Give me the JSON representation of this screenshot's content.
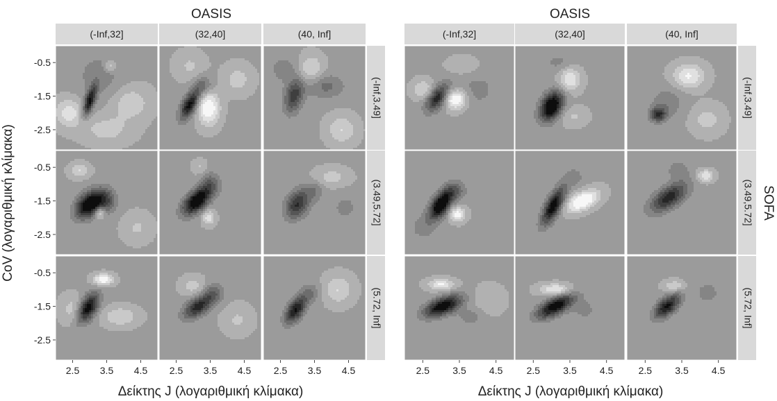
{
  "chart_data": [
    {
      "type": "heatmap",
      "subtype": "filled-contour-faceted",
      "title": "OASIS",
      "xlabel": "Δείκτης J (λογαριθμική κλίμακα)",
      "ylabel": "CoV (λογαριθμική κλίμακα)",
      "xlim": [
        2.0,
        5.0
      ],
      "ylim": [
        -3.1,
        0.0
      ],
      "x_ticks": [
        "2.5",
        "3.5",
        "4.5"
      ],
      "y_ticks": [
        "-0.5",
        "-1.5",
        "-2.5"
      ],
      "facet_cols": [
        "(-Inf,32]",
        "(32,40]",
        "(40, Inf]"
      ],
      "facet_rows": [
        "(-Inf,3.49]",
        "(3.49,5.72]",
        "(5.72, Inf]"
      ],
      "palette": [
        "#f7f7f7",
        "#e0e0e0",
        "#c9c9c9",
        "#b1b1b1",
        "#9b9b9b",
        "#858585",
        "#6d6d6d",
        "#565656",
        "#3f3f3f",
        "#262626",
        "#0d0d0d"
      ],
      "base_level": 0.38,
      "panels": [
        [
          {
            "blobs": [
              {
                "x": 3.0,
                "y": -1.65,
                "amp": 0.55,
                "sx": 0.14,
                "sy": 0.32,
                "rho": 0.65
              },
              {
                "x": 3.3,
                "y": -0.9,
                "amp": 0.12,
                "sx": 0.5,
                "sy": 0.5,
                "rho": 0.0
              },
              {
                "x": 2.4,
                "y": -2.0,
                "amp": -0.25,
                "sx": 0.3,
                "sy": 0.3,
                "rho": 0.0
              },
              {
                "x": 4.2,
                "y": -1.7,
                "amp": -0.18,
                "sx": 0.4,
                "sy": 0.35,
                "rho": 0.0
              },
              {
                "x": 3.6,
                "y": -0.6,
                "amp": -0.2,
                "sx": 0.12,
                "sy": 0.12,
                "rho": 0.0
              },
              {
                "x": 3.5,
                "y": -2.5,
                "amp": -0.15,
                "sx": 0.5,
                "sy": 0.3,
                "rho": 0.0
              }
            ]
          },
          {
            "blobs": [
              {
                "x": 2.9,
                "y": -1.75,
                "amp": 0.58,
                "sx": 0.2,
                "sy": 0.3,
                "rho": 0.6
              },
              {
                "x": 3.45,
                "y": -1.85,
                "amp": -0.4,
                "sx": 0.22,
                "sy": 0.35,
                "rho": 0.0
              },
              {
                "x": 3.3,
                "y": -1.2,
                "amp": 0.22,
                "sx": 0.2,
                "sy": 0.2,
                "rho": 0.0
              },
              {
                "x": 2.9,
                "y": -0.6,
                "amp": -0.12,
                "sx": 0.3,
                "sy": 0.3,
                "rho": 0.0
              },
              {
                "x": 4.3,
                "y": -1.0,
                "amp": -0.15,
                "sx": 0.3,
                "sy": 0.3,
                "rho": 0.0
              }
            ]
          },
          {
            "blobs": [
              {
                "x": 2.9,
                "y": -1.5,
                "amp": 0.4,
                "sx": 0.2,
                "sy": 0.35,
                "rho": 0.3
              },
              {
                "x": 3.8,
                "y": -1.2,
                "amp": 0.2,
                "sx": 0.4,
                "sy": 0.25,
                "rho": 0.0
              },
              {
                "x": 2.6,
                "y": -0.7,
                "amp": 0.12,
                "sx": 0.3,
                "sy": 0.3,
                "rho": 0.0
              },
              {
                "x": 3.4,
                "y": -0.7,
                "amp": -0.22,
                "sx": 0.25,
                "sy": 0.3,
                "rho": 0.0
              },
              {
                "x": 4.3,
                "y": -2.5,
                "amp": -0.2,
                "sx": 0.3,
                "sy": 0.3,
                "rho": 0.0
              }
            ]
          }
        ],
        [
          {
            "blobs": [
              {
                "x": 3.0,
                "y": -1.6,
                "amp": 0.72,
                "sx": 0.28,
                "sy": 0.28,
                "rho": 0.4
              },
              {
                "x": 3.5,
                "y": -1.5,
                "amp": 0.28,
                "sx": 0.2,
                "sy": 0.25,
                "rho": 0.0
              },
              {
                "x": 3.3,
                "y": -1.85,
                "amp": -0.3,
                "sx": 0.1,
                "sy": 0.12,
                "rho": 0.0
              },
              {
                "x": 2.7,
                "y": -0.6,
                "amp": -0.2,
                "sx": 0.2,
                "sy": 0.15,
                "rho": 0.0
              },
              {
                "x": 4.4,
                "y": -2.3,
                "amp": -0.12,
                "sx": 0.3,
                "sy": 0.3,
                "rho": 0.0
              }
            ]
          },
          {
            "blobs": [
              {
                "x": 3.1,
                "y": -1.5,
                "amp": 0.7,
                "sx": 0.28,
                "sy": 0.28,
                "rho": 0.55
              },
              {
                "x": 3.5,
                "y": -1.0,
                "amp": 0.22,
                "sx": 0.2,
                "sy": 0.25,
                "rho": 0.0
              },
              {
                "x": 3.45,
                "y": -2.0,
                "amp": -0.26,
                "sx": 0.13,
                "sy": 0.15,
                "rho": 0.0
              },
              {
                "x": 3.2,
                "y": -0.5,
                "amp": -0.12,
                "sx": 0.15,
                "sy": 0.15,
                "rho": 0.0
              }
            ]
          },
          {
            "blobs": [
              {
                "x": 3.0,
                "y": -1.6,
                "amp": 0.45,
                "sx": 0.25,
                "sy": 0.3,
                "rho": 0.3
              },
              {
                "x": 3.5,
                "y": -1.2,
                "amp": 0.15,
                "sx": 0.2,
                "sy": 0.2,
                "rho": 0.0
              },
              {
                "x": 4.0,
                "y": -0.8,
                "amp": -0.15,
                "sx": 0.35,
                "sy": 0.2,
                "rho": 0.0
              },
              {
                "x": 4.4,
                "y": -1.7,
                "amp": 0.1,
                "sx": 0.3,
                "sy": 0.3,
                "rho": 0.0
              }
            ]
          }
        ],
        [
          {
            "blobs": [
              {
                "x": 2.95,
                "y": -1.55,
                "amp": 0.62,
                "sx": 0.22,
                "sy": 0.3,
                "rho": 0.5
              },
              {
                "x": 3.4,
                "y": -0.7,
                "amp": -0.38,
                "sx": 0.2,
                "sy": 0.12,
                "rho": 0.0
              },
              {
                "x": 3.9,
                "y": -1.8,
                "amp": -0.2,
                "sx": 0.35,
                "sy": 0.2,
                "rho": 0.0
              },
              {
                "x": 2.5,
                "y": -1.6,
                "amp": -0.15,
                "sx": 0.25,
                "sy": 0.3,
                "rho": 0.0
              }
            ]
          },
          {
            "blobs": [
              {
                "x": 3.15,
                "y": -1.5,
                "amp": 0.5,
                "sx": 0.3,
                "sy": 0.25,
                "rho": 0.55
              },
              {
                "x": 3.6,
                "y": -1.1,
                "amp": 0.2,
                "sx": 0.2,
                "sy": 0.2,
                "rho": 0.0
              },
              {
                "x": 3.0,
                "y": -0.9,
                "amp": -0.15,
                "sx": 0.25,
                "sy": 0.2,
                "rho": 0.0
              },
              {
                "x": 4.3,
                "y": -1.9,
                "amp": -0.12,
                "sx": 0.3,
                "sy": 0.3,
                "rho": 0.0
              }
            ]
          },
          {
            "blobs": [
              {
                "x": 2.95,
                "y": -1.6,
                "amp": 0.55,
                "sx": 0.22,
                "sy": 0.28,
                "rho": 0.55
              },
              {
                "x": 3.4,
                "y": -1.1,
                "amp": 0.15,
                "sx": 0.2,
                "sy": 0.2,
                "rho": 0.0
              },
              {
                "x": 4.2,
                "y": -1.0,
                "amp": -0.2,
                "sx": 0.3,
                "sy": 0.3,
                "rho": 0.0
              }
            ]
          }
        ]
      ]
    },
    {
      "type": "heatmap",
      "subtype": "filled-contour-faceted",
      "title": "OASIS",
      "xlabel": "Δείκτης J (λογαριθμική κλίμακα)",
      "ylabel": "",
      "right_label": "SOFA",
      "xlim": [
        2.0,
        5.0
      ],
      "ylim": [
        -3.1,
        0.0
      ],
      "x_ticks": [
        "2.5",
        "3.5",
        "4.5"
      ],
      "facet_cols": [
        "(-Inf,32]",
        "(32,40]",
        "(40, Inf]"
      ],
      "facet_rows": [
        "(-Inf,3.49]",
        "(3.49,5.72]",
        "(5.72, Inf]"
      ],
      "palette": [
        "#f7f7f7",
        "#e0e0e0",
        "#c9c9c9",
        "#b1b1b1",
        "#9b9b9b",
        "#858585",
        "#6d6d6d",
        "#565656",
        "#3f3f3f",
        "#262626",
        "#0d0d0d"
      ],
      "base_level": 0.38,
      "panels": [
        [
          {
            "blobs": [
              {
                "x": 2.9,
                "y": -1.55,
                "amp": 0.5,
                "sx": 0.22,
                "sy": 0.28,
                "rho": 0.55
              },
              {
                "x": 3.4,
                "y": -1.6,
                "amp": -0.42,
                "sx": 0.2,
                "sy": 0.2,
                "rho": 0.0
              },
              {
                "x": 2.5,
                "y": -1.3,
                "amp": -0.2,
                "sx": 0.2,
                "sy": 0.2,
                "rho": 0.0
              },
              {
                "x": 4.0,
                "y": -1.3,
                "amp": 0.1,
                "sx": 0.4,
                "sy": 0.4,
                "rho": 0.0
              },
              {
                "x": 3.6,
                "y": -0.6,
                "amp": -0.1,
                "sx": 0.3,
                "sy": 0.2,
                "rho": 0.0
              }
            ]
          },
          {
            "blobs": [
              {
                "x": 3.0,
                "y": -1.8,
                "amp": 0.72,
                "sx": 0.22,
                "sy": 0.3,
                "rho": 0.35
              },
              {
                "x": 3.5,
                "y": -1.0,
                "amp": -0.3,
                "sx": 0.2,
                "sy": 0.25,
                "rho": 0.0
              },
              {
                "x": 3.6,
                "y": -2.1,
                "amp": -0.12,
                "sx": 0.25,
                "sy": 0.2,
                "rho": 0.0
              },
              {
                "x": 3.2,
                "y": -0.5,
                "amp": 0.1,
                "sx": 0.3,
                "sy": 0.2,
                "rho": 0.0
              }
            ]
          },
          {
            "blobs": [
              {
                "x": 2.85,
                "y": -2.05,
                "amp": 0.45,
                "sx": 0.15,
                "sy": 0.15,
                "rho": 0.0
              },
              {
                "x": 3.1,
                "y": -1.7,
                "amp": 0.15,
                "sx": 0.3,
                "sy": 0.3,
                "rho": 0.0
              },
              {
                "x": 3.7,
                "y": -0.9,
                "amp": -0.3,
                "sx": 0.3,
                "sy": 0.25,
                "rho": 0.0
              },
              {
                "x": 4.2,
                "y": -2.2,
                "amp": -0.15,
                "sx": 0.3,
                "sy": 0.3,
                "rho": 0.0
              }
            ]
          }
        ],
        [
          {
            "blobs": [
              {
                "x": 3.0,
                "y": -1.6,
                "amp": 0.72,
                "sx": 0.22,
                "sy": 0.3,
                "rho": 0.55
              },
              {
                "x": 3.45,
                "y": -1.9,
                "amp": -0.35,
                "sx": 0.15,
                "sy": 0.15,
                "rho": 0.0
              },
              {
                "x": 3.4,
                "y": -1.2,
                "amp": 0.2,
                "sx": 0.2,
                "sy": 0.2,
                "rho": 0.0
              },
              {
                "x": 2.5,
                "y": -2.3,
                "amp": 0.1,
                "sx": 0.3,
                "sy": 0.3,
                "rho": 0.0
              }
            ]
          },
          {
            "blobs": [
              {
                "x": 3.05,
                "y": -1.65,
                "amp": 0.62,
                "sx": 0.22,
                "sy": 0.38,
                "rho": 0.7
              },
              {
                "x": 3.85,
                "y": -1.5,
                "amp": -0.45,
                "sx": 0.3,
                "sy": 0.22,
                "rho": 0.5
              },
              {
                "x": 3.6,
                "y": -0.8,
                "amp": 0.12,
                "sx": 0.2,
                "sy": 0.2,
                "rho": 0.0
              }
            ]
          },
          {
            "blobs": [
              {
                "x": 3.15,
                "y": -1.4,
                "amp": 0.5,
                "sx": 0.35,
                "sy": 0.3,
                "rho": 0.6
              },
              {
                "x": 4.15,
                "y": -0.75,
                "amp": -0.3,
                "sx": 0.15,
                "sy": 0.12,
                "rho": 0.0
              },
              {
                "x": 3.4,
                "y": -0.6,
                "amp": 0.15,
                "sx": 0.2,
                "sy": 0.2,
                "rho": 0.0
              }
            ]
          }
        ],
        [
          {
            "blobs": [
              {
                "x": 3.05,
                "y": -1.5,
                "amp": 0.65,
                "sx": 0.35,
                "sy": 0.22,
                "rho": 0.55
              },
              {
                "x": 3.0,
                "y": -0.85,
                "amp": -0.3,
                "sx": 0.25,
                "sy": 0.12,
                "rho": 0.0
              },
              {
                "x": 3.8,
                "y": -1.8,
                "amp": 0.12,
                "sx": 0.25,
                "sy": 0.2,
                "rho": 0.0
              },
              {
                "x": 4.3,
                "y": -1.3,
                "amp": -0.1,
                "sx": 0.3,
                "sy": 0.3,
                "rho": 0.0
              }
            ]
          },
          {
            "blobs": [
              {
                "x": 3.1,
                "y": -1.5,
                "amp": 0.62,
                "sx": 0.35,
                "sy": 0.25,
                "rho": 0.65
              },
              {
                "x": 3.1,
                "y": -1.0,
                "amp": -0.3,
                "sx": 0.3,
                "sy": 0.12,
                "rho": 0.0
              },
              {
                "x": 3.9,
                "y": -1.6,
                "amp": 0.1,
                "sx": 0.25,
                "sy": 0.25,
                "rho": 0.0
              }
            ]
          },
          {
            "blobs": [
              {
                "x": 3.1,
                "y": -1.5,
                "amp": 0.55,
                "sx": 0.25,
                "sy": 0.25,
                "rho": 0.6
              },
              {
                "x": 3.3,
                "y": -0.9,
                "amp": -0.2,
                "sx": 0.2,
                "sy": 0.12,
                "rho": 0.0
              },
              {
                "x": 4.2,
                "y": -1.1,
                "amp": 0.1,
                "sx": 0.3,
                "sy": 0.3,
                "rho": 0.0
              }
            ]
          }
        ]
      ]
    }
  ]
}
